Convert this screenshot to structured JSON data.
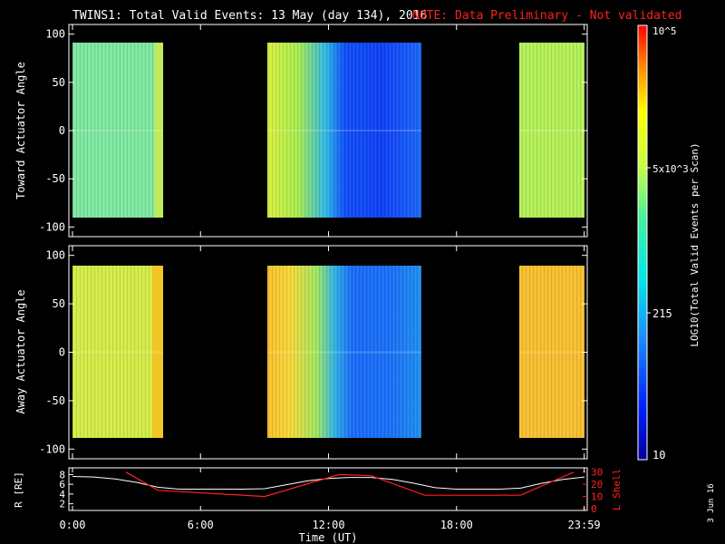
{
  "title": {
    "main": "TWINS1: Total Valid Events: 13 May (day 134), 2016",
    "note": "NOTE: Data Preliminary - Not validated",
    "note_color": "#ff2020"
  },
  "stamp": "3 Jun 16",
  "colorbar": {
    "label": "LOG10(Total Valid Events per Scan)",
    "ticks": [
      "10",
      "215",
      "5x10^3",
      "10^5"
    ]
  },
  "chart_data": [
    {
      "type": "heatmap",
      "panel": "toward",
      "ylabel": "Toward Actuator Angle",
      "ylim": [
        -110,
        110
      ],
      "yticks": [
        -100,
        -50,
        0,
        50,
        100
      ],
      "xlim": [
        0,
        24
      ],
      "angle_range": [
        -90,
        90
      ],
      "segments": [
        {
          "start_hr": 0.0,
          "end_hr": 4.1,
          "level": "green-cyan"
        },
        {
          "start_hr": 9.1,
          "end_hr": 16.6,
          "level": "yellow-to-blue"
        },
        {
          "start_hr": 21.1,
          "end_hr": 24.0,
          "level": "yellow-green"
        }
      ]
    },
    {
      "type": "heatmap",
      "panel": "away",
      "ylabel": "Away Actuator Angle",
      "ylim": [
        -110,
        110
      ],
      "yticks": [
        -100,
        -50,
        0,
        50,
        100
      ],
      "xlim": [
        0,
        24
      ],
      "angle_range": [
        -90,
        90
      ],
      "segments": [
        {
          "start_hr": 0.0,
          "end_hr": 4.1,
          "level": "yellow"
        },
        {
          "start_hr": 9.1,
          "end_hr": 16.6,
          "level": "orange-to-blue"
        },
        {
          "start_hr": 21.1,
          "end_hr": 24.0,
          "level": "orange"
        }
      ]
    },
    {
      "type": "line",
      "panel": "orbit",
      "ylabel_left": "R [RE]",
      "ylabel_right": "L Shell",
      "ylim_left": [
        1,
        9
      ],
      "yticks_left": [
        2,
        4,
        6,
        8
      ],
      "ylim_right": [
        0,
        32
      ],
      "yticks_right": [
        0,
        10,
        20,
        30
      ],
      "series": [
        {
          "axis": "left",
          "color": "#ffffff",
          "x": [
            0,
            1,
            2,
            3,
            4,
            5,
            6,
            7,
            8,
            9,
            10,
            11,
            12,
            13,
            14,
            15,
            16,
            17,
            18,
            19,
            20,
            21,
            22,
            23,
            24
          ],
          "y": [
            7.6,
            7.5,
            7.1,
            6.4,
            5.4,
            5.0,
            5.0,
            5.0,
            5.0,
            5.1,
            5.9,
            6.7,
            7.2,
            7.4,
            7.4,
            7.0,
            6.2,
            5.3,
            5.0,
            5.0,
            5.0,
            5.2,
            6.2,
            7.0,
            7.5
          ]
        },
        {
          "axis": "right",
          "color": "#ff2020",
          "x": [
            2.5,
            4.0,
            9.0,
            12.5,
            14.0,
            16.5,
            21.0,
            23.5
          ],
          "y": [
            30,
            15,
            10,
            28,
            27,
            11,
            11,
            30
          ]
        }
      ]
    }
  ],
  "time_axis": {
    "label": "Time (UT)",
    "ticks": [
      {
        "hr": 0,
        "label": "0:00"
      },
      {
        "hr": 6,
        "label": "6:00"
      },
      {
        "hr": 12,
        "label": "12:00"
      },
      {
        "hr": 18,
        "label": "18:00"
      },
      {
        "hr": 23.983,
        "label": "23:59"
      }
    ]
  }
}
